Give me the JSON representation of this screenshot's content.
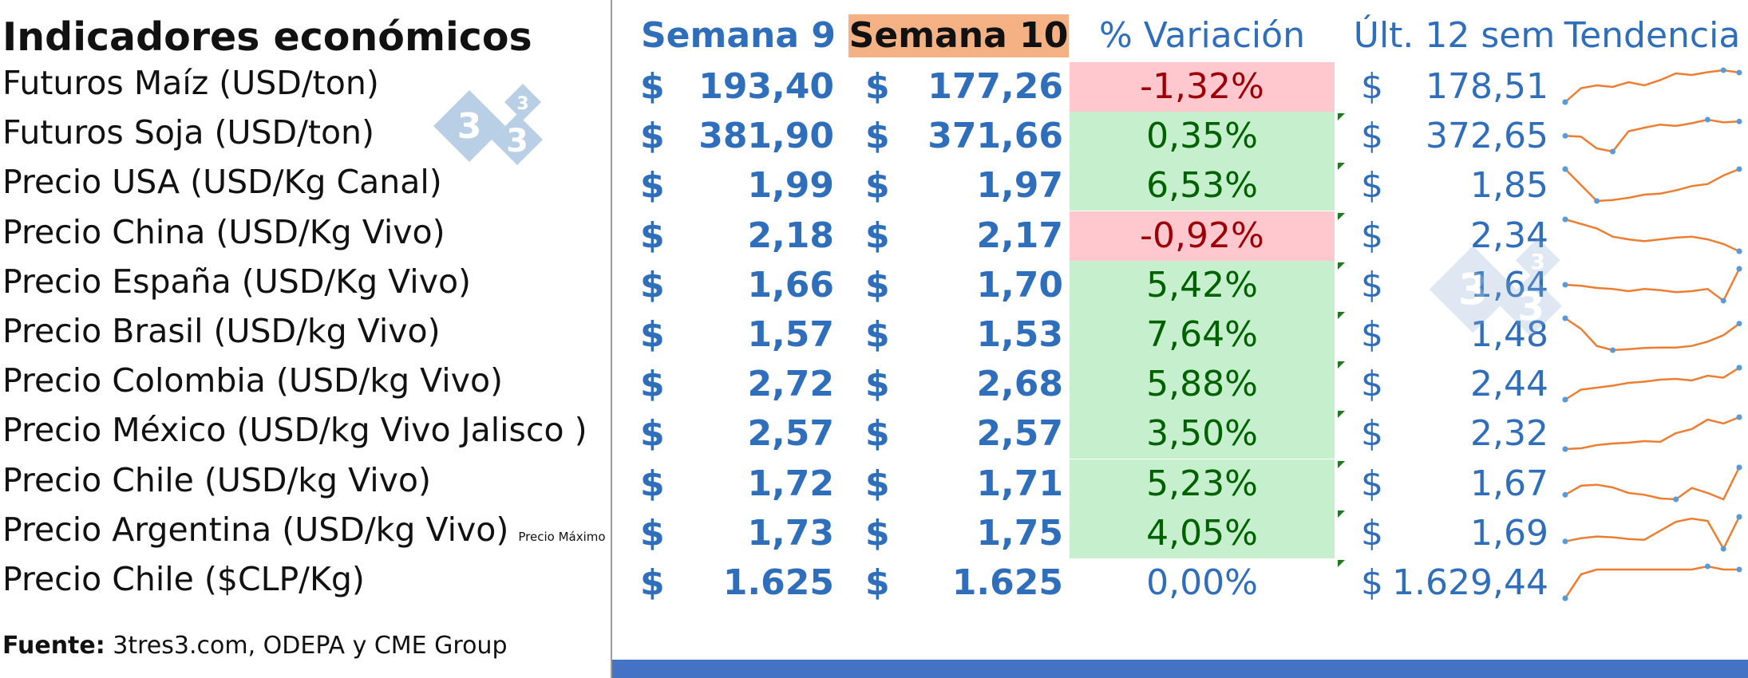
{
  "title": "Indicadores económicos",
  "headers": {
    "week9": "Semana 9",
    "week10": "Semana 10",
    "variation": "% Variación",
    "last12": "Últ. 12 sem",
    "trend": "Tendencia"
  },
  "currency_symbol": "$",
  "rows": [
    {
      "label": "Futuros Maíz (USD/ton)",
      "note": "",
      "week9": "193,40",
      "week10": "177,26",
      "variation": "-1,32%",
      "status": "negative",
      "last12": "178,51",
      "trend": [
        20,
        55,
        62,
        58,
        70,
        62,
        75,
        92,
        88,
        95,
        100,
        94
      ]
    },
    {
      "label": "Futuros Soja (USD/ton)",
      "note": "",
      "week9": "381,90",
      "week10": "371,66",
      "variation": "0,35%",
      "status": "positive",
      "last12": "372,65",
      "trend": [
        70,
        68,
        42,
        35,
        80,
        88,
        95,
        92,
        98,
        106,
        100,
        102
      ]
    },
    {
      "label": "Precio USA (USD/Kg Canal)",
      "note": "",
      "week9": "1,99",
      "week10": "1,97",
      "variation": "6,53%",
      "status": "positive",
      "last12": "1,85",
      "trend": [
        100,
        70,
        40,
        42,
        46,
        52,
        54,
        60,
        68,
        72,
        88,
        100
      ]
    },
    {
      "label": "Precio China (USD/Kg Vivo)",
      "note": "",
      "week9": "2,18",
      "week10": "2,17",
      "variation": "-0,92%",
      "status": "negative",
      "last12": "2,34",
      "trend": [
        100,
        90,
        80,
        62,
        56,
        52,
        56,
        60,
        62,
        56,
        46,
        30
      ]
    },
    {
      "label": "Precio España (USD/Kg Vivo)",
      "note": "",
      "week9": "1,66",
      "week10": "1,70",
      "variation": "5,42%",
      "status": "positive",
      "last12": "1,64",
      "trend": [
        70,
        68,
        64,
        62,
        58,
        62,
        60,
        56,
        58,
        62,
        40,
        100
      ]
    },
    {
      "label": "Precio  Brasil (USD/kg Vivo)",
      "note": "",
      "week9": "1,57",
      "week10": "1,53",
      "variation": "7,64%",
      "status": "positive",
      "last12": "1,48",
      "trend": [
        100,
        80,
        48,
        40,
        42,
        44,
        45,
        45,
        48,
        56,
        68,
        90
      ]
    },
    {
      "label": "Precio Colombia (USD/kg Vivo)",
      "note": "",
      "week9": "2,72",
      "week10": "2,68",
      "variation": "5,88%",
      "status": "positive",
      "last12": "2,44",
      "trend": [
        20,
        45,
        50,
        55,
        62,
        65,
        70,
        72,
        68,
        80,
        75,
        100
      ]
    },
    {
      "label": "Precio México (USD/kg Vivo Jalisco )",
      "note": "",
      "week9": "2,57",
      "week10": "2,57",
      "variation": "3,50%",
      "status": "positive",
      "last12": "2,32",
      "trend": [
        20,
        22,
        30,
        34,
        36,
        40,
        38,
        60,
        70,
        94,
        84,
        100
      ]
    },
    {
      "label": "Precio Chile (USD/kg Vivo)",
      "note": "",
      "week9": "1,72",
      "week10": "1,71",
      "variation": "5,23%",
      "status": "positive",
      "last12": "1,67",
      "trend": [
        40,
        60,
        62,
        56,
        44,
        40,
        32,
        30,
        55,
        44,
        30,
        100
      ]
    },
    {
      "label": "Precio Argentina (USD/kg Vivo)",
      "note": "Precio Máximo",
      "week9": "1,73",
      "week10": "1,75",
      "variation": "4,05%",
      "status": "positive",
      "last12": "1,69",
      "trend": [
        40,
        48,
        52,
        50,
        46,
        44,
        66,
        88,
        96,
        90,
        22,
        100
      ]
    },
    {
      "label": "Precio Chile ($CLP/Kg)",
      "note": "",
      "week9": "1.625",
      "week10": "1.625",
      "variation": "0,00%",
      "status": "neutral",
      "last12": "1.629,44",
      "trend": [
        0,
        75,
        90,
        90,
        90,
        90,
        90,
        90,
        90,
        100,
        90,
        90
      ]
    }
  ],
  "source": {
    "label": "Fuente:",
    "text": " 3tres3.com, ODEPA y CME Group"
  },
  "logo": {
    "digits": [
      "3",
      "3",
      "3"
    ]
  },
  "colors": {
    "header_blue": "#2f6eba",
    "week10_header_bg": "#f4b183",
    "positive_bg": "#c6efce",
    "positive_text": "#006100",
    "negative_bg": "#ffc7ce",
    "negative_text": "#9c0006",
    "sparkline": "#ed7d31",
    "sparkline_marker": "#5b9bd5",
    "bottom_bar": "#4472c4"
  }
}
